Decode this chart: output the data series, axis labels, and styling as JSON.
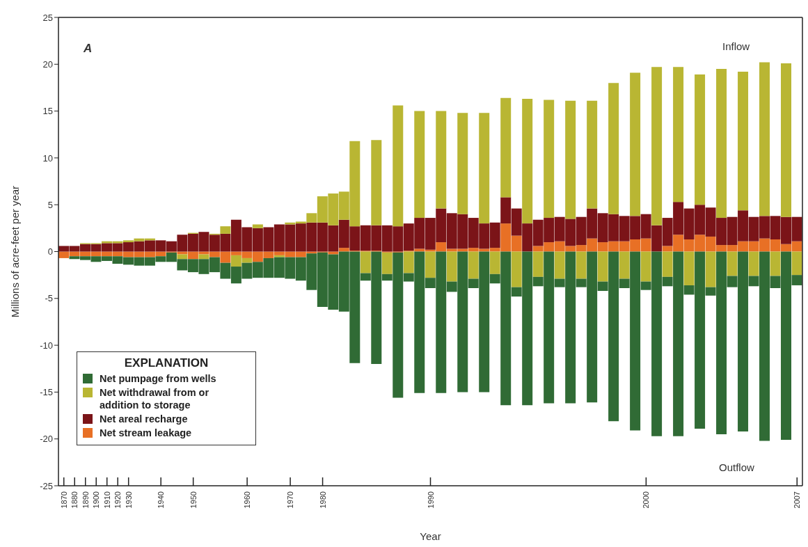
{
  "chart_data": {
    "type": "bar",
    "stacked": true,
    "xlabel": "Year",
    "ylabel": "Millions of acre-feet per year",
    "legend_title": "EXPLANATION",
    "annotations": [
      "A",
      "Inflow",
      "Outflow"
    ],
    "categories": [
      "1870",
      "1880",
      "1890",
      "1900",
      "1910",
      "1920",
      "1930",
      null,
      null,
      "1940",
      null,
      null,
      "1950",
      null,
      null,
      null,
      null,
      "1960",
      null,
      null,
      null,
      "1970",
      null,
      null,
      "1980",
      null,
      null,
      null,
      null,
      null,
      null,
      null,
      null,
      null,
      "1990",
      null,
      null,
      null,
      null,
      null,
      null,
      null,
      null,
      null,
      null,
      null,
      null,
      null,
      null,
      null,
      null,
      null,
      null,
      null,
      "2000",
      null,
      null,
      null,
      null,
      null,
      null,
      null,
      null,
      null,
      null,
      null,
      null,
      null,
      "2007"
    ],
    "series": [
      {
        "name": "Net stream leakage",
        "color": "#e87025",
        "values": [
          -0.7,
          -0.5,
          -0.5,
          -0.5,
          -0.5,
          -0.5,
          -0.6,
          -0.6,
          -0.6,
          -0.5,
          -0.1,
          -0.3,
          -0.8,
          -0.3,
          -0.6,
          -1.2,
          -0.4,
          -0.7,
          -1.1,
          -0.7,
          -0.4,
          -0.6,
          -0.6,
          -0.2,
          -0.1,
          -0.3,
          0.4,
          0.1,
          0.1,
          0.1,
          -0.1,
          -0.1,
          0.1,
          0.3,
          0.2,
          1.0,
          0.3,
          0.3,
          0.4,
          0.3,
          0.4,
          3.0,
          1.7,
          0,
          0.6,
          1.0,
          1.1,
          0.6,
          0.7,
          1.4,
          1.0,
          1.1,
          1.1,
          1.3,
          1.4,
          0,
          0.6,
          1.8,
          1.3,
          1.8,
          1.6,
          0.7,
          0.7,
          1.1,
          1.1,
          1.4,
          1.3,
          0.8,
          1.1
        ]
      },
      {
        "name": "Net areal recharge",
        "color": "#7b1418",
        "values": [
          0.6,
          0.6,
          0.8,
          0.8,
          0.9,
          0.9,
          1.0,
          1.1,
          1.2,
          1.2,
          1.1,
          1.8,
          1.9,
          2.1,
          1.8,
          1.9,
          3.4,
          2.6,
          2.5,
          2.6,
          2.9,
          2.9,
          3.0,
          3.1,
          3.1,
          2.8,
          3.0,
          2.6,
          2.7,
          2.7,
          2.8,
          2.7,
          2.9,
          3.3,
          3.4,
          3.6,
          3.8,
          3.7,
          3.2,
          2.7,
          2.7,
          2.8,
          2.9,
          3.0,
          2.8,
          2.6,
          2.6,
          2.9,
          3.0,
          3.2,
          3.1,
          2.9,
          2.7,
          2.5,
          2.6,
          2.8,
          3.0,
          3.5,
          3.3,
          3.2,
          3.1,
          2.9,
          3.0,
          3.3,
          2.6,
          2.4,
          2.5,
          2.9,
          2.6
        ]
      },
      {
        "name": "Net withdrawal from or addition to storage",
        "color": "#b9b633",
        "values": [
          0,
          0,
          0.1,
          0.1,
          0.2,
          0.2,
          0.2,
          0.3,
          0.2,
          0,
          0,
          -0.5,
          0.1,
          -0.5,
          0.1,
          0.8,
          -1.2,
          -0.5,
          0.4,
          0,
          -0.2,
          0.2,
          0.2,
          1.0,
          2.8,
          3.4,
          3.0,
          9.1,
          -2.3,
          9.1,
          -2.3,
          12.9,
          -2.3,
          11.4,
          -2.8,
          10.4,
          -3.2,
          10.8,
          -2.9,
          11.8,
          -2.4,
          10.6,
          -3.8,
          13.3,
          -2.7,
          12.6,
          -2.9,
          12.6,
          -2.9,
          11.5,
          -3.2,
          14.0,
          -2.9,
          15.3,
          -3.2,
          16.9,
          -2.7,
          14.4,
          -3.6,
          13.9,
          -3.8,
          15.9,
          -2.6,
          14.8,
          -2.6,
          16.4,
          -2.6,
          16.4,
          -2.5
        ]
      },
      {
        "name": "Net pumpage from wells",
        "color": "#306b35",
        "values": [
          0,
          -0.3,
          -0.4,
          -0.6,
          -0.5,
          -0.8,
          -0.8,
          -0.9,
          -0.9,
          -0.6,
          -1.0,
          -1.2,
          -1.4,
          -1.6,
          -1.6,
          -1.7,
          -1.8,
          -1.7,
          -1.7,
          -2.1,
          -2.2,
          -2.3,
          -2.5,
          -3.9,
          -5.8,
          -5.9,
          -6.4,
          -11.9,
          -0.8,
          -12.0,
          -0.7,
          -15.5,
          -0.9,
          -15.1,
          -1.1,
          -15.1,
          -1.1,
          -15.0,
          -1.0,
          -15.0,
          -1.0,
          -16.4,
          -1.0,
          -16.4,
          -1.0,
          -16.2,
          -0.9,
          -16.2,
          -0.9,
          -16.1,
          -1.0,
          -18.1,
          -1.0,
          -19.1,
          -0.9,
          -19.7,
          -1.0,
          -19.7,
          -1.0,
          -18.9,
          -0.9,
          -19.5,
          -1.2,
          -19.2,
          -1.1,
          -20.2,
          -1.3,
          -20.1,
          -1.1
        ]
      }
    ],
    "ylim": [
      -25,
      25
    ],
    "yticks": [
      -25,
      -20,
      -15,
      -10,
      -5,
      0,
      5,
      10,
      15,
      20,
      25
    ],
    "legend": "bottom left"
  }
}
